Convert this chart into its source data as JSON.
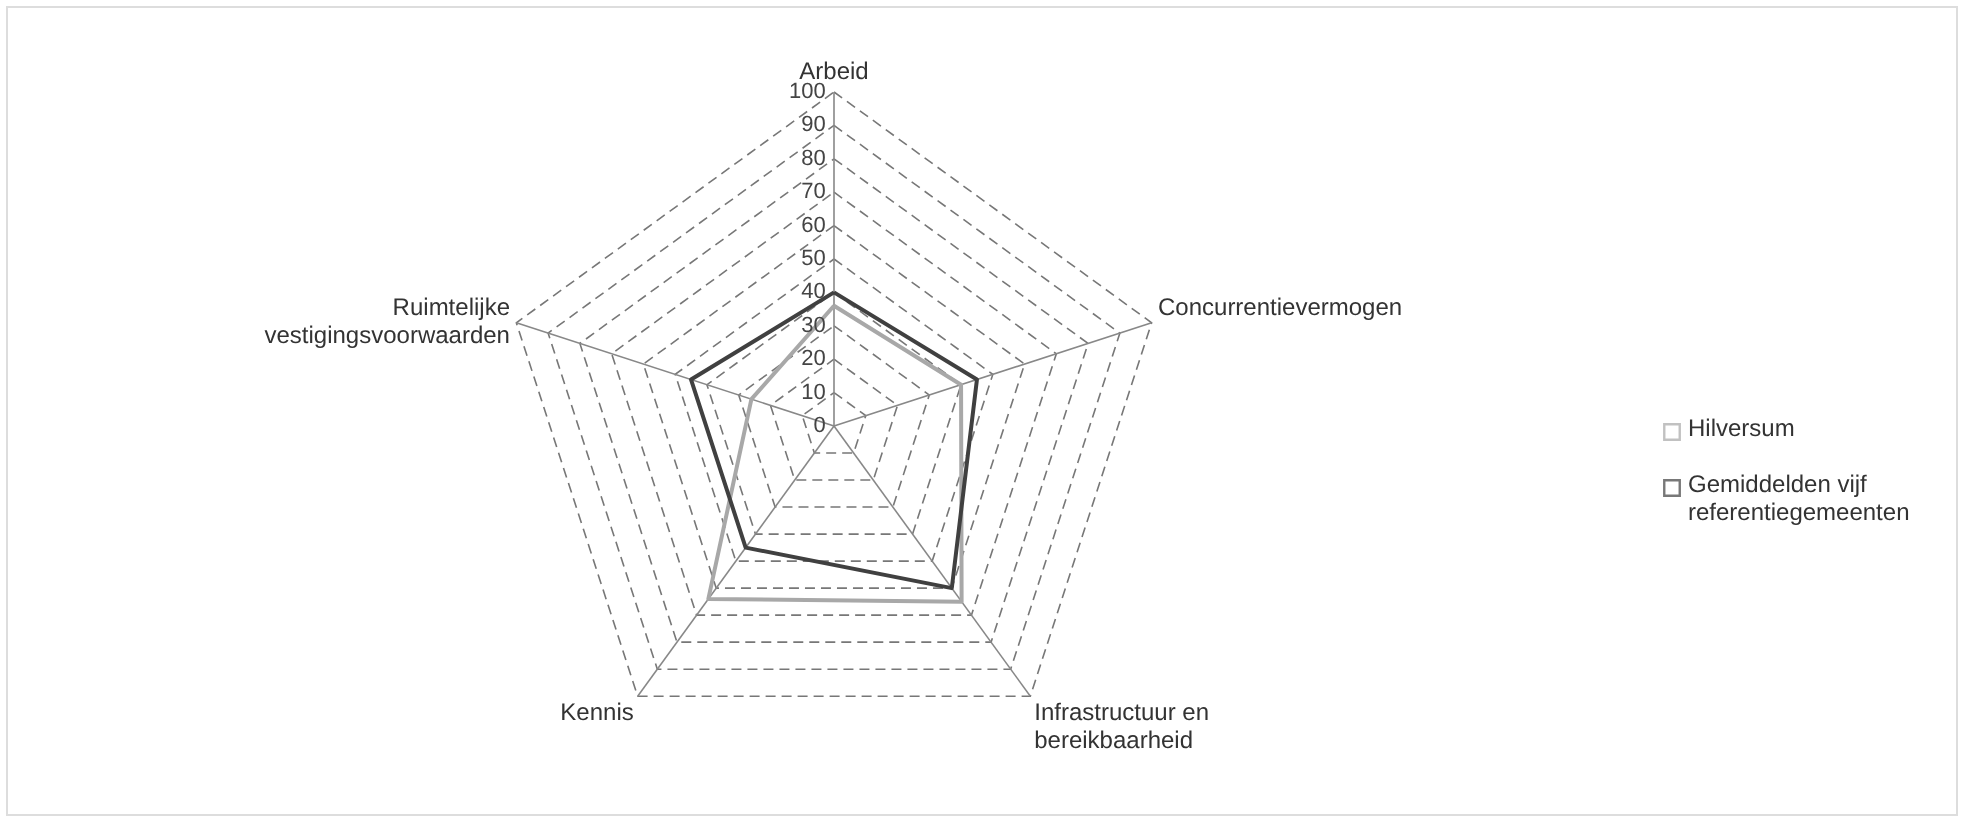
{
  "chart_data": {
    "type": "radar",
    "categories": [
      "Arbeid",
      "Concurrentievermogen",
      "Infrastructuur en bereikbaarheid",
      "Kennis",
      "Ruimtelijke vestigingsvoorwaarden"
    ],
    "series": [
      {
        "name": "Hilversum",
        "color": "#a8a8a8",
        "values": [
          36,
          40,
          65,
          64,
          26
        ]
      },
      {
        "name": "Gemiddelden vijf referentiegemeenten",
        "color": "#404040",
        "values": [
          40,
          45,
          60,
          45,
          45
        ]
      }
    ],
    "ylim": [
      0,
      100
    ],
    "yticks": [
      0,
      10,
      20,
      30,
      40,
      50,
      60,
      70,
      80,
      90,
      100
    ],
    "grid": true,
    "legend": "right"
  }
}
